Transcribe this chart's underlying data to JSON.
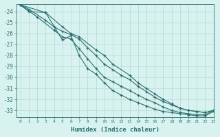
{
  "xlabel": "Humidex (Indice chaleur)",
  "bg_color": "#d8f2f0",
  "grid_color": "#b8dcd8",
  "line_color": "#2a6e6e",
  "marker": "+",
  "xlim": [
    -0.5,
    23
  ],
  "ylim": [
    -33.6,
    -23.3
  ],
  "yticks": [
    -24,
    -25,
    -26,
    -27,
    -28,
    -29,
    -30,
    -31,
    -32,
    -33
  ],
  "xticks": [
    0,
    1,
    2,
    3,
    4,
    5,
    6,
    7,
    8,
    9,
    10,
    11,
    12,
    13,
    14,
    15,
    16,
    17,
    18,
    19,
    20,
    21,
    22,
    23
  ],
  "lines": [
    {
      "x": [
        0,
        1,
        3,
        5,
        6,
        7,
        9,
        10,
        11,
        13,
        14,
        15,
        16,
        17,
        18,
        19,
        20,
        21,
        22,
        23
      ],
      "y": [
        -23.4,
        -24.0,
        -24.1,
        -25.4,
        -26.0,
        -26.3,
        -27.5,
        -28.0,
        -28.8,
        -29.8,
        -30.5,
        -31.0,
        -31.5,
        -32.0,
        -32.4,
        -32.8,
        -33.0,
        -33.1,
        -33.2,
        -33.0
      ]
    },
    {
      "x": [
        0,
        1,
        3,
        4,
        5,
        6,
        7,
        8,
        9,
        10,
        11,
        12,
        13,
        14,
        15,
        16,
        17,
        18,
        19,
        20,
        21,
        22,
        23
      ],
      "y": [
        -23.4,
        -23.8,
        -24.8,
        -25.4,
        -25.8,
        -26.1,
        -26.5,
        -27.3,
        -28.0,
        -28.8,
        -29.3,
        -29.8,
        -30.2,
        -30.8,
        -31.3,
        -31.8,
        -32.2,
        -32.5,
        -32.8,
        -33.0,
        -33.1,
        -33.2,
        -33.0
      ]
    },
    {
      "x": [
        0,
        2,
        4,
        5,
        6,
        7,
        8,
        9,
        10,
        11,
        12,
        13,
        14,
        15,
        16,
        17,
        18,
        19,
        20,
        21,
        22,
        23
      ],
      "y": [
        -23.4,
        -24.5,
        -25.7,
        -26.3,
        -26.5,
        -27.4,
        -28.3,
        -29.2,
        -30.0,
        -30.4,
        -30.8,
        -31.2,
        -31.6,
        -32.0,
        -32.3,
        -32.7,
        -33.0,
        -33.2,
        -33.3,
        -33.4,
        -33.4,
        -33.0
      ]
    },
    {
      "x": [
        0,
        3,
        5,
        6,
        7,
        8,
        9,
        10,
        11,
        12,
        13,
        14,
        15,
        16,
        17,
        18,
        19,
        20,
        21,
        22,
        23
      ],
      "y": [
        -23.4,
        -24.1,
        -26.6,
        -26.2,
        -28.0,
        -29.2,
        -29.7,
        -30.5,
        -31.2,
        -31.6,
        -32.0,
        -32.3,
        -32.6,
        -32.9,
        -33.1,
        -33.2,
        -33.3,
        -33.4,
        -33.5,
        -33.5,
        -33.1
      ]
    }
  ]
}
